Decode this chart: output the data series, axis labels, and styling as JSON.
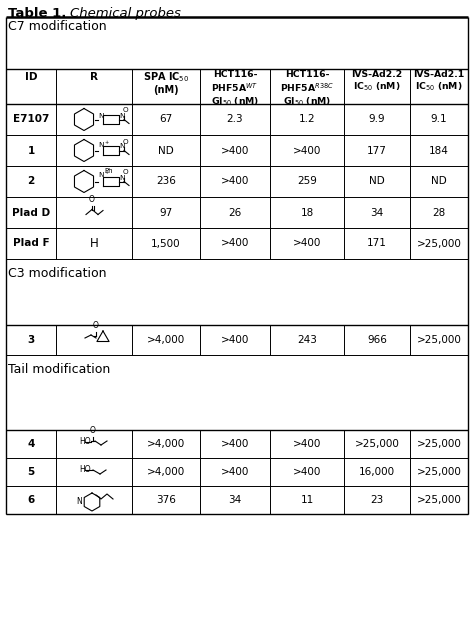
{
  "title_bold": "Table 1.",
  "title_italic": "Chemical probes",
  "c7_rows": [
    {
      "id": "E7107",
      "spa": "67",
      "hct_wt": "2.3",
      "hct_r38c": "1.2",
      "ivs22": "9.9",
      "ivs21": "9.1"
    },
    {
      "id": "1",
      "spa": "ND",
      "hct_wt": ">400",
      "hct_r38c": ">400",
      "ivs22": "177",
      "ivs21": "184"
    },
    {
      "id": "2",
      "spa": "236",
      "hct_wt": ">400",
      "hct_r38c": "259",
      "ivs22": "ND",
      "ivs21": "ND"
    },
    {
      "id": "Plad D",
      "spa": "97",
      "hct_wt": "26",
      "hct_r38c": "18",
      "ivs22": "34",
      "ivs21": "28"
    },
    {
      "id": "Plad F",
      "spa": "1,500",
      "hct_wt": ">400",
      "hct_r38c": ">400",
      "ivs22": "171",
      "ivs21": ">25,000"
    }
  ],
  "c3_rows": [
    {
      "id": "3",
      "spa": ">4,000",
      "hct_wt": ">400",
      "hct_r38c": "243",
      "ivs22": "966",
      "ivs21": ">25,000"
    }
  ],
  "tail_rows": [
    {
      "id": "4",
      "spa": ">4,000",
      "hct_wt": ">400",
      "hct_r38c": ">400",
      "ivs22": ">25,000",
      "ivs21": ">25,000"
    },
    {
      "id": "5",
      "spa": ">4,000",
      "hct_wt": ">400",
      "hct_r38c": ">400",
      "ivs22": "16,000",
      "ivs21": ">25,000"
    },
    {
      "id": "6",
      "spa": "376",
      "hct_wt": "34",
      "hct_r38c": "11",
      "ivs22": "23",
      "ivs21": ">25,000"
    }
  ],
  "col_lefts": [
    6,
    56,
    132,
    200,
    270,
    344,
    410
  ],
  "col_rights": [
    56,
    132,
    200,
    270,
    344,
    410,
    468
  ],
  "line_color": "#000000",
  "text_color": "#000000",
  "bg_color": "#ffffff"
}
